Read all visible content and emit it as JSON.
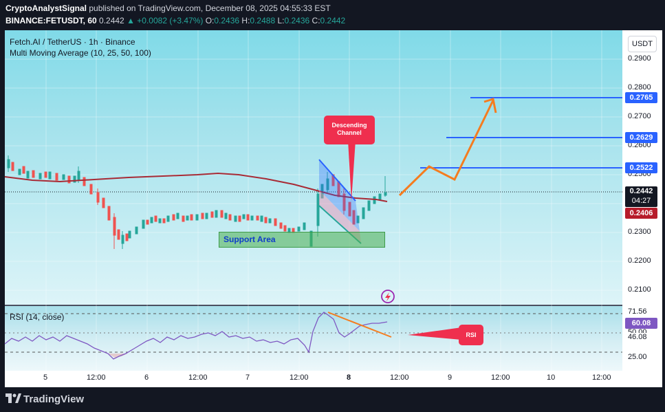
{
  "header": {
    "author": "CryptoAnalystSignal",
    "publish_text": " published on TradingView.com, December 08, 2025 04:55:33 EST",
    "symbol_line": "BINANCE:FETUSDT, 60",
    "price": "0.2442",
    "change": "▲ +0.0082 (+3.47%)",
    "o_label": "O:",
    "o_value": "0.2436",
    "h_label": "H:",
    "h_value": "0.2488",
    "l_label": "L:",
    "l_value": "0.2436",
    "c_label": "C:",
    "c_value": "0.2442"
  },
  "legend": {
    "title": "Fetch.AI / TetherUS · 1h · Binance",
    "indicator": "Multi Moving Average (10, 25, 50, 100)",
    "rsi": "RSI (14, close)"
  },
  "currency_button": "USDT",
  "price_axis": [
    "0.2900",
    "0.2800",
    "0.2700",
    "0.2600",
    "0.2500",
    "0.2300",
    "0.2200",
    "0.2100"
  ],
  "rsi_axis": [
    "71.56",
    "46.08",
    "25.00"
  ],
  "rsi_partial": "50.00",
  "time_axis": [
    "5",
    "12:00",
    "6",
    "12:00",
    "7",
    "12:00",
    "8",
    "12:00",
    "9",
    "12:00",
    "10",
    "12:00"
  ],
  "level_tags": {
    "t1": "0.2765",
    "t2": "0.2629",
    "t3": "0.2522",
    "current": "0.2442",
    "countdown": "04:27",
    "ma": "0.2406",
    "rsi_value": "60.08"
  },
  "annotations": {
    "descending_channel": "Descending Channel",
    "support_area": "Support Area",
    "rsi_label": "RSI"
  },
  "footer": {
    "brand": "TradingView"
  },
  "colors": {
    "background": "#131722",
    "up": "#26a69a",
    "down": "#ef5350",
    "target_line": "#2962ff",
    "projection": "#f57c1f",
    "annotation": "#ef2f4e",
    "ma_line": "#a82a35",
    "rsi_line": "#7e57c2"
  },
  "icons": [
    "trendline-flash-icon",
    "tradingview-logo-icon"
  ]
}
